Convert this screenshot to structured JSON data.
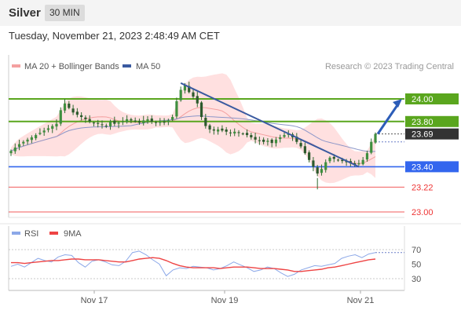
{
  "header": {
    "instrument": "Silver",
    "timeframe": "30 MIN"
  },
  "timestamp": "Tuesday, November 21, 2023 2:48:49 AM CET",
  "credit": "Research © 2023 Trading Central",
  "colors": {
    "green_level": "#5aa61e",
    "blue_level": "#3366ee",
    "red_level": "#ee3333",
    "trend": "#3a5aa0",
    "bollinger": "#ffd6d6",
    "ma20": "#f4a0a0",
    "ma50": "#8c96c8",
    "rsi": "#8ca8e8",
    "rsi_ma": "#ee4444"
  },
  "chart_data": [
    {
      "type": "candlestick",
      "legend": [
        {
          "name": "MA 20 + Bollinger Bands",
          "color": "#f4a0a0"
        },
        {
          "name": "MA 50",
          "color": "#3a5aa0"
        }
      ],
      "x_tick_labels": [
        "Nov 17",
        "Nov 19",
        "Nov 21"
      ],
      "y_range": [
        22.92,
        24.32
      ],
      "current_price": 23.69,
      "levels": [
        {
          "value": 24.0,
          "label": "24.00",
          "kind": "resistance",
          "color": "#5aa61e"
        },
        {
          "value": 23.8,
          "label": "23.80",
          "kind": "resistance",
          "color": "#5aa61e"
        },
        {
          "value": 23.69,
          "label": "23.69",
          "kind": "last",
          "color": "#333333"
        },
        {
          "value": 23.4,
          "label": "23.40",
          "kind": "pivot",
          "color": "#3366ee"
        },
        {
          "value": 23.22,
          "label": "23.22",
          "kind": "support",
          "color": "#ee3333"
        },
        {
          "value": 23.0,
          "label": "23.00",
          "kind": "support",
          "color": "#ee3333"
        }
      ],
      "trendline": {
        "from": 24.14,
        "to": 23.4
      },
      "projection": {
        "from": 23.69,
        "to": 24.0
      },
      "closes": [
        23.54,
        23.57,
        23.6,
        23.62,
        23.64,
        23.66,
        23.68,
        23.7,
        23.72,
        23.74,
        23.76,
        23.78,
        23.9,
        23.96,
        23.92,
        23.88,
        23.86,
        23.84,
        23.82,
        23.8,
        23.79,
        23.78,
        23.77,
        23.76,
        23.8,
        23.78,
        23.79,
        23.8,
        23.82,
        23.81,
        23.8,
        23.79,
        23.81,
        23.82,
        23.8,
        23.79,
        23.8,
        23.79,
        23.81,
        23.84,
        23.98,
        24.08,
        24.12,
        24.06,
        24.02,
        23.96,
        23.84,
        23.76,
        23.73,
        23.72,
        23.73,
        23.72,
        23.71,
        23.7,
        23.71,
        23.7,
        23.69,
        23.68,
        23.66,
        23.64,
        23.63,
        23.62,
        23.63,
        23.61,
        23.64,
        23.66,
        23.68,
        23.69,
        23.66,
        23.62,
        23.58,
        23.52,
        23.46,
        23.4,
        23.34,
        23.38,
        23.44,
        23.48,
        23.47,
        23.46,
        23.45,
        23.44,
        23.43,
        23.42,
        23.43,
        23.46,
        23.52,
        23.62,
        23.69
      ]
    },
    {
      "type": "line",
      "legend": [
        {
          "name": "RSI",
          "color": "#8ca8e8"
        },
        {
          "name": "9MA",
          "color": "#ee4444"
        }
      ],
      "y_range": [
        15,
        85
      ],
      "y_ticks": [
        "70",
        "50",
        "30"
      ],
      "series": [
        {
          "name": "RSI",
          "values": [
            47,
            50,
            46,
            52,
            58,
            55,
            53,
            60,
            63,
            62,
            52,
            46,
            54,
            56,
            53,
            49,
            48,
            54,
            66,
            68,
            63,
            56,
            50,
            34,
            42,
            45,
            44,
            47,
            46,
            45,
            42,
            44,
            48,
            53,
            49,
            45,
            40,
            42,
            46,
            44,
            38,
            33,
            36,
            42,
            45,
            48,
            47,
            49,
            51,
            58,
            61,
            63,
            59,
            64,
            66
          ]
        },
        {
          "name": "9MA",
          "values": [
            52,
            52,
            51,
            52,
            53,
            54,
            55,
            55,
            56,
            57,
            57,
            56,
            56,
            56,
            55,
            54,
            53,
            53,
            55,
            57,
            58,
            59,
            58,
            55,
            51,
            48,
            46,
            45,
            45,
            45,
            45,
            44,
            45,
            46,
            46,
            46,
            45,
            44,
            44,
            44,
            43,
            42,
            40,
            40,
            41,
            42,
            43,
            45,
            46,
            48,
            50,
            52,
            54,
            56,
            57
          ]
        }
      ]
    }
  ]
}
